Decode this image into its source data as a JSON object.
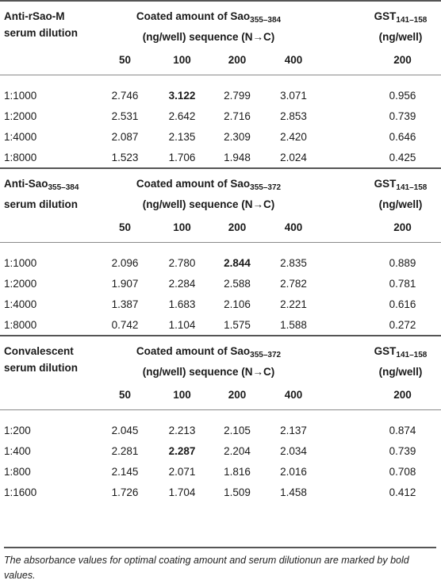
{
  "columns": {
    "c1": "50",
    "c2": "100",
    "c3": "200",
    "c4": "400",
    "gst": "200"
  },
  "sections": [
    {
      "dilution_label_1": "Anti-rSao-M",
      "dilution_label_2": "serum dilution",
      "coat_line1_pre": "Coated amount of Sao",
      "coat_sub": "355–384",
      "coat_line2": "(ng/well) sequence (N→C)",
      "gst_pre": "GST",
      "gst_sub": "141–158",
      "gst_unit": "(ng/well)",
      "rows": [
        {
          "dil": "1:1000",
          "v": [
            "2.746",
            "3.122",
            "2.799",
            "3.071"
          ],
          "gst": "0.956"
        },
        {
          "dil": "1:2000",
          "v": [
            "2.531",
            "2.642",
            "2.716",
            "2.853"
          ],
          "gst": "0.739"
        },
        {
          "dil": "1:4000",
          "v": [
            "2.087",
            "2.135",
            "2.309",
            "2.420"
          ],
          "gst": "0.646"
        },
        {
          "dil": "1:8000",
          "v": [
            "1.523",
            "1.706",
            "1.948",
            "2.024"
          ],
          "gst": "0.425"
        }
      ]
    },
    {
      "dilution_label_1_pre": "Anti-Sao",
      "dilution_label_1_sub": "355–384",
      "dilution_label_2": "serum dilution",
      "coat_line1_pre": "Coated amount of Sao",
      "coat_sub": "355–372",
      "coat_line2": "(ng/well) sequence (N→C)",
      "gst_pre": "GST",
      "gst_sub": "141–158",
      "gst_unit": "(ng/well)",
      "rows": [
        {
          "dil": "1:1000",
          "v": [
            "2.096",
            "2.780",
            "2.844",
            "2.835"
          ],
          "gst": "0.889"
        },
        {
          "dil": "1:2000",
          "v": [
            "1.907",
            "2.284",
            "2.588",
            "2.782"
          ],
          "gst": "0.781"
        },
        {
          "dil": "1:4000",
          "v": [
            "1.387",
            "1.683",
            "2.106",
            "2.221"
          ],
          "gst": "0.616"
        },
        {
          "dil": "1:8000",
          "v": [
            "0.742",
            "1.104",
            "1.575",
            "1.588"
          ],
          "gst": "0.272"
        }
      ]
    },
    {
      "dilution_label_1": "Convalescent",
      "dilution_label_2": "serum dilution",
      "coat_line1_pre": "Coated amount of Sao",
      "coat_sub": "355–372",
      "coat_line2": "(ng/well) sequence (N→C)",
      "gst_pre": "GST",
      "gst_sub": "141–158",
      "gst_unit": "(ng/well)",
      "rows": [
        {
          "dil": "1:200",
          "v": [
            "2.045",
            "2.213",
            "2.105",
            "2.137"
          ],
          "gst": "0.874"
        },
        {
          "dil": "1:400",
          "v": [
            "2.281",
            "2.287",
            "2.204",
            "2.034"
          ],
          "gst": "0.739"
        },
        {
          "dil": "1:800",
          "v": [
            "2.145",
            "2.071",
            "1.816",
            "2.016"
          ],
          "gst": "0.708"
        },
        {
          "dil": "1:1600",
          "v": [
            "1.726",
            "1.704",
            "1.509",
            "1.458"
          ],
          "gst": "0.412"
        }
      ]
    }
  ],
  "footnote": "The absorbance values for optimal coating amount and serum dilutionun are marked by bold values."
}
